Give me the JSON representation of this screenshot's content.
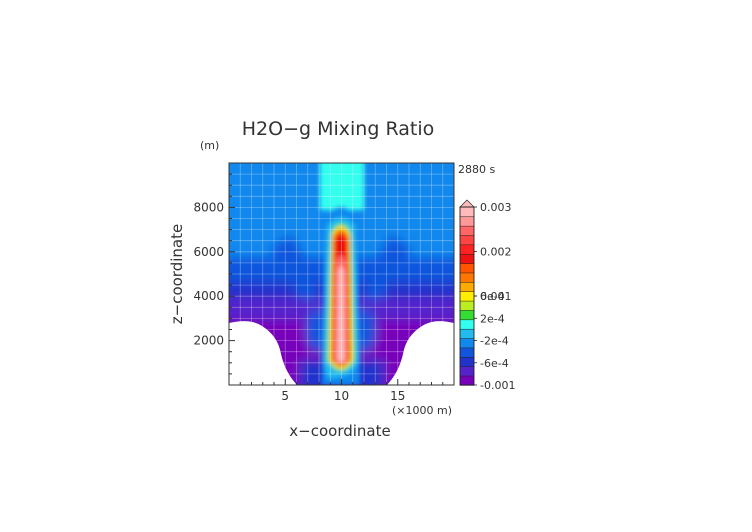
{
  "chart_data": {
    "type": "heatmap",
    "title": "H2O−g Mixing Ratio",
    "xlabel": "x−coordinate",
    "ylabel": "z−coordinate",
    "x_unit": "(×1000 m)",
    "y_unit": "(m)",
    "time_label": "2880 s",
    "xlim": [
      0,
      20
    ],
    "ylim": [
      0,
      10000
    ],
    "x_ticks": [
      {
        "value": 5,
        "label": "5"
      },
      {
        "value": 10,
        "label": "10"
      },
      {
        "value": 15,
        "label": "15"
      }
    ],
    "y_ticks": [
      {
        "value": 2000,
        "label": "2000"
      },
      {
        "value": 4000,
        "label": "4000"
      },
      {
        "value": 6000,
        "label": "6000"
      },
      {
        "value": 8000,
        "label": "8000"
      }
    ],
    "grid": true,
    "colorbar": {
      "colors": [
        "#7700bb",
        "#5522cc",
        "#2233cc",
        "#1155dd",
        "#1188ee",
        "#22bbee",
        "#33ffee",
        "#33dd33",
        "#bbee22",
        "#ffee00",
        "#ffaa00",
        "#ff7700",
        "#ff5500",
        "#ee1111",
        "#ff2222",
        "#ff4444",
        "#ff6666",
        "#ff9999",
        "#ffbbbb"
      ],
      "labels": [
        {
          "value": 0.003,
          "label": "0.003"
        },
        {
          "value": 0.002,
          "label": "0.002"
        },
        {
          "value": 0.001,
          "label": "0.001"
        },
        {
          "value": 0.0006,
          "label": "6e-4"
        },
        {
          "value": 0.0002,
          "label": "2e-4"
        },
        {
          "value": -0.0002,
          "label": "-2e-4"
        },
        {
          "value": -0.0006,
          "label": "-6e-4"
        },
        {
          "value": -0.001,
          "label": "-0.001"
        }
      ]
    }
  }
}
